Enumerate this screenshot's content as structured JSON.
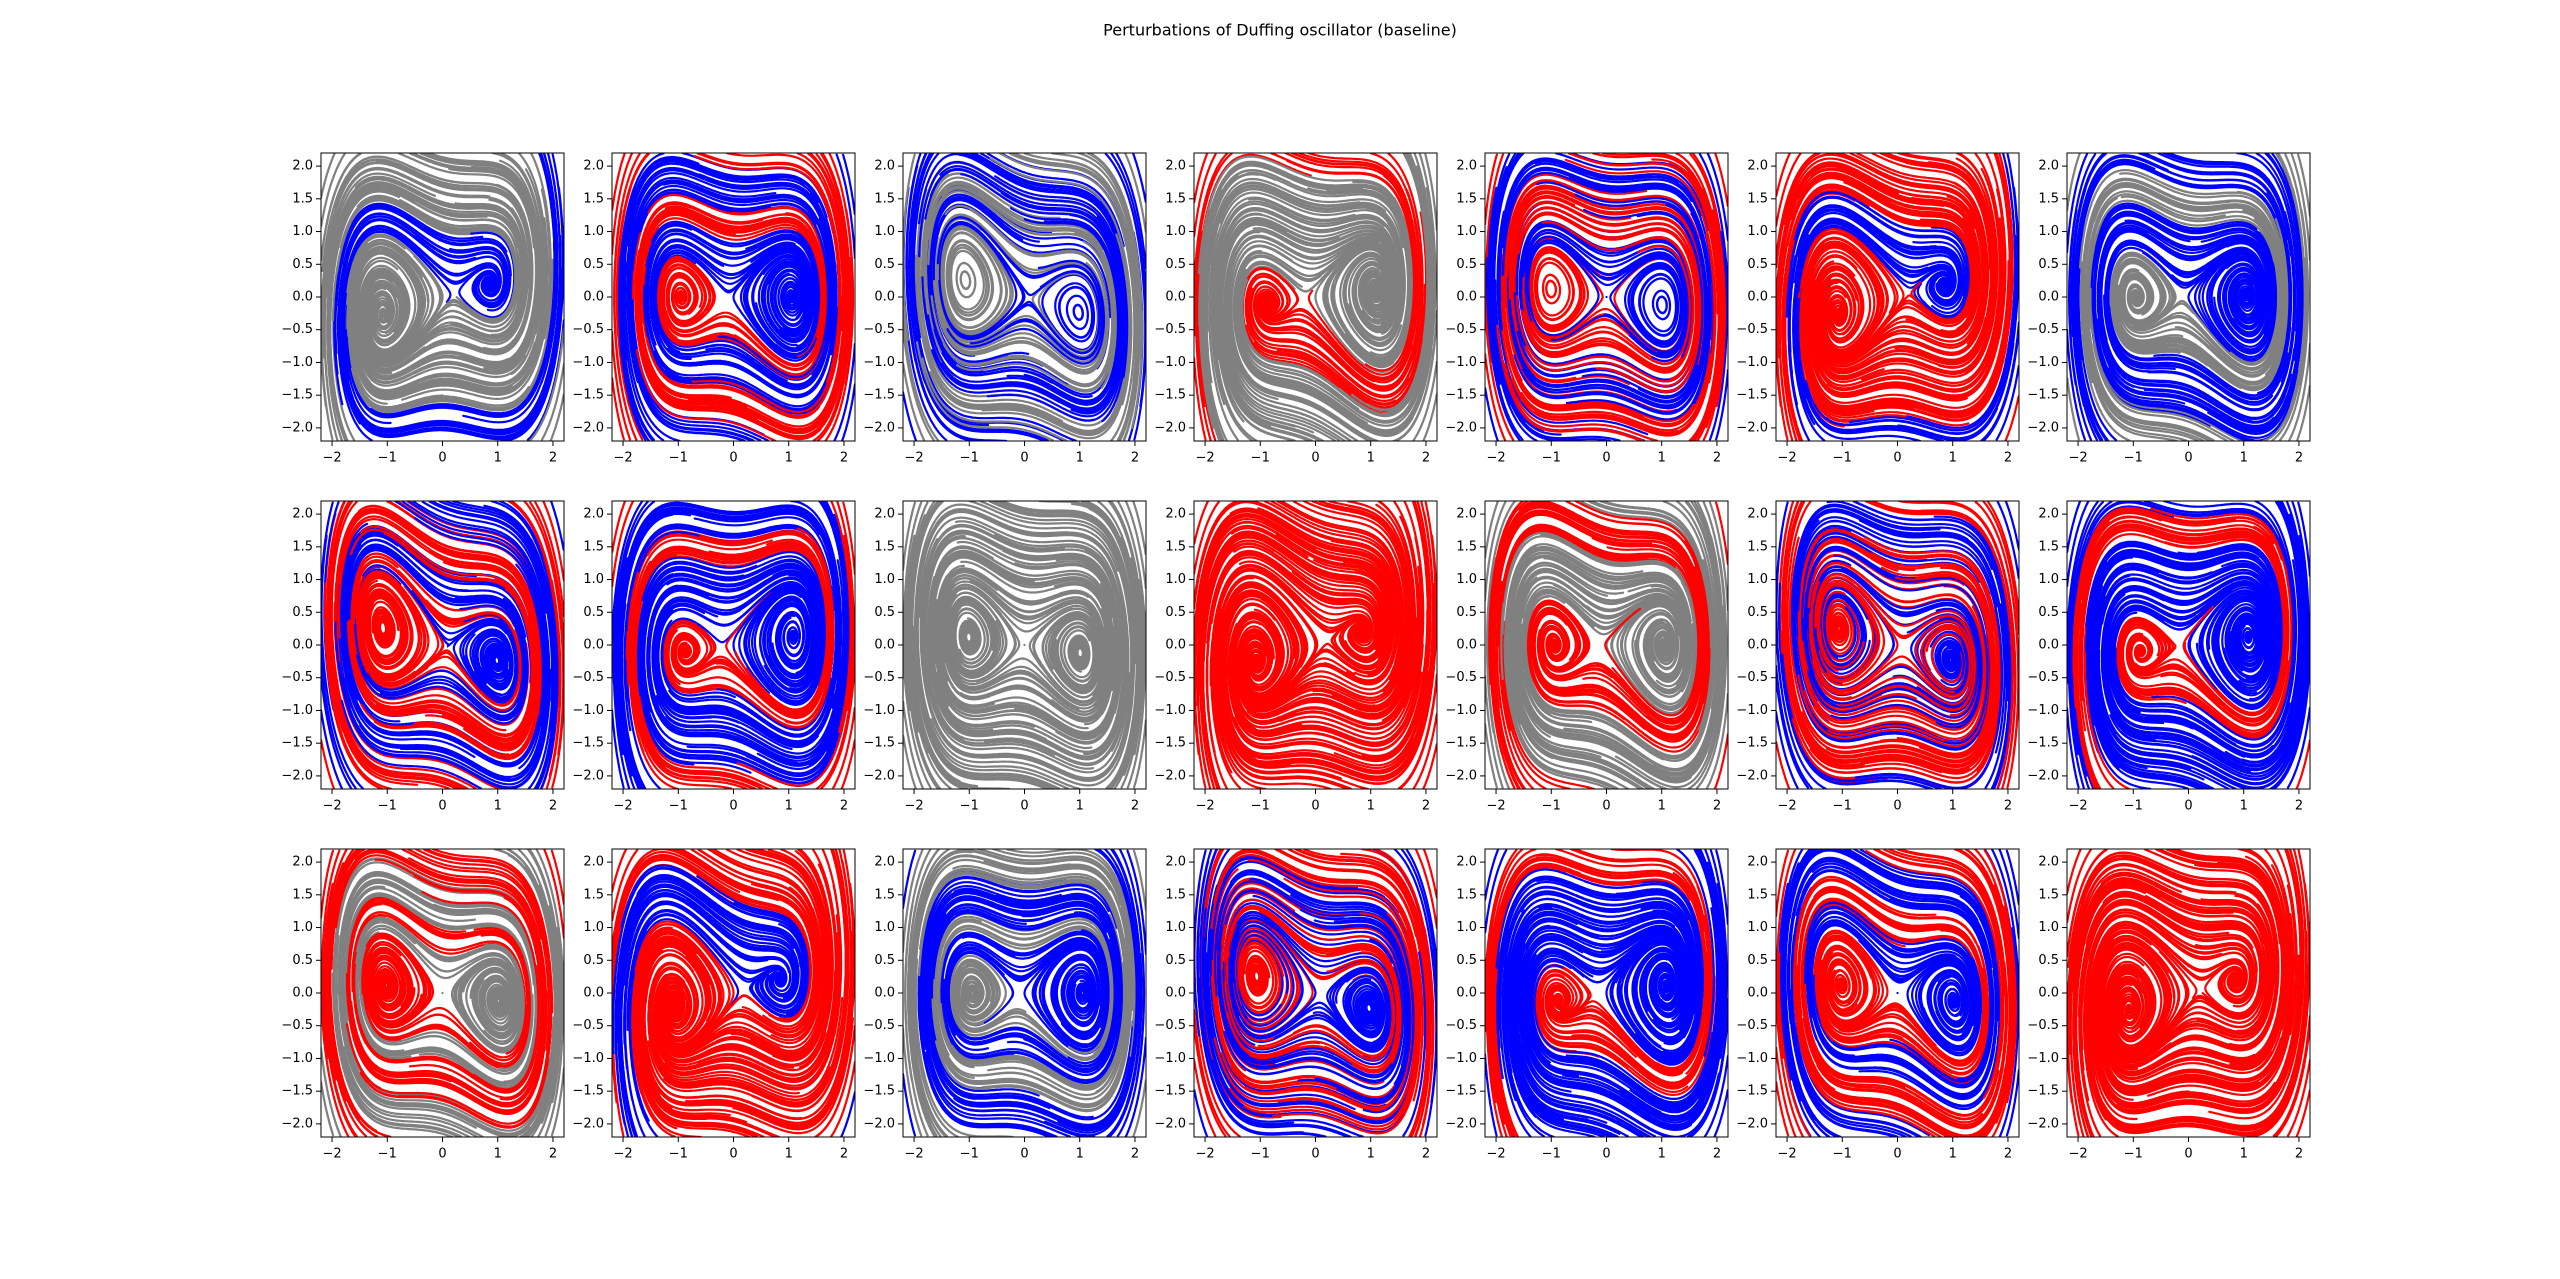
{
  "title": "Perturbations of Duffing oscillator (baseline)",
  "chart_data": [
    {
      "type": "streamplot",
      "colors": [
        "#808080",
        "#0000ff"
      ],
      "xlim": [
        -2.2,
        2.2
      ],
      "ylim": [
        -2.2,
        2.2
      ],
      "xticks": [
        {
          "value": -2,
          "label": "−2"
        },
        {
          "value": -1,
          "label": "−1"
        },
        0,
        1,
        2
      ],
      "yticks": [
        {
          "value": -2,
          "label": "−2.0"
        },
        {
          "value": -1.5,
          "label": "−1.5"
        },
        {
          "value": -1,
          "label": "−1.0"
        },
        {
          "value": -0.5,
          "label": "−0.5"
        },
        {
          "value": 0,
          "label": "0.0"
        },
        0.5,
        {
          "value": 1,
          "label": "1.0"
        },
        1.5,
        {
          "value": 2,
          "label": "2.0"
        }
      ]
    },
    {
      "type": "streamplot",
      "colors": [
        "#ff0000",
        "#0000ff"
      ],
      "xlim": [
        -2.2,
        2.2
      ],
      "ylim": [
        -2.2,
        2.2
      ],
      "xticks": [
        {
          "value": -2,
          "label": "−2"
        },
        {
          "value": -1,
          "label": "−1"
        },
        0,
        1,
        2
      ],
      "yticks": [
        {
          "value": -2,
          "label": "−2.0"
        },
        {
          "value": -1.5,
          "label": "−1.5"
        },
        {
          "value": -1,
          "label": "−1.0"
        },
        {
          "value": -0.5,
          "label": "−0.5"
        },
        {
          "value": 0,
          "label": "0.0"
        },
        0.5,
        {
          "value": 1,
          "label": "1.0"
        },
        1.5,
        {
          "value": 2,
          "label": "2.0"
        }
      ]
    },
    {
      "type": "streamplot",
      "colors": [
        "#808080",
        "#0000ff"
      ],
      "xlim": [
        -2.2,
        2.2
      ],
      "ylim": [
        -2.2,
        2.2
      ],
      "xticks": [
        {
          "value": -2,
          "label": "−2"
        },
        {
          "value": -1,
          "label": "−1"
        },
        0,
        1,
        2
      ],
      "yticks": [
        {
          "value": -2,
          "label": "−2.0"
        },
        {
          "value": -1.5,
          "label": "−1.5"
        },
        {
          "value": -1,
          "label": "−1.0"
        },
        {
          "value": -0.5,
          "label": "−0.5"
        },
        {
          "value": 0,
          "label": "0.0"
        },
        0.5,
        {
          "value": 1,
          "label": "1.0"
        },
        1.5,
        {
          "value": 2,
          "label": "2.0"
        }
      ]
    },
    {
      "type": "streamplot",
      "colors": [
        "#ff0000",
        "#808080"
      ],
      "xlim": [
        -2.2,
        2.2
      ],
      "ylim": [
        -2.2,
        2.2
      ],
      "xticks": [
        {
          "value": -2,
          "label": "−2"
        },
        {
          "value": -1,
          "label": "−1"
        },
        0,
        1,
        2
      ],
      "yticks": [
        {
          "value": -2,
          "label": "−2.0"
        },
        {
          "value": -1.5,
          "label": "−1.5"
        },
        {
          "value": -1,
          "label": "−1.0"
        },
        {
          "value": -0.5,
          "label": "−0.5"
        },
        {
          "value": 0,
          "label": "0.0"
        },
        0.5,
        {
          "value": 1,
          "label": "1.0"
        },
        1.5,
        {
          "value": 2,
          "label": "2.0"
        }
      ]
    },
    {
      "type": "streamplot",
      "colors": [
        "#ff0000",
        "#0000ff"
      ],
      "xlim": [
        -2.2,
        2.2
      ],
      "ylim": [
        -2.2,
        2.2
      ],
      "xticks": [
        {
          "value": -2,
          "label": "−2"
        },
        {
          "value": -1,
          "label": "−1"
        },
        0,
        1,
        2
      ],
      "yticks": [
        {
          "value": -2,
          "label": "−2.0"
        },
        {
          "value": -1.5,
          "label": "−1.5"
        },
        {
          "value": -1,
          "label": "−1.0"
        },
        {
          "value": -0.5,
          "label": "−0.5"
        },
        {
          "value": 0,
          "label": "0.0"
        },
        0.5,
        {
          "value": 1,
          "label": "1.0"
        },
        1.5,
        {
          "value": 2,
          "label": "2.0"
        }
      ]
    },
    {
      "type": "streamplot",
      "colors": [
        "#ff0000",
        "#0000ff"
      ],
      "xlim": [
        -2.2,
        2.2
      ],
      "ylim": [
        -2.2,
        2.2
      ],
      "xticks": [
        {
          "value": -2,
          "label": "−2"
        },
        {
          "value": -1,
          "label": "−1"
        },
        0,
        1,
        2
      ],
      "yticks": [
        {
          "value": -2,
          "label": "−2.0"
        },
        {
          "value": -1.5,
          "label": "−1.5"
        },
        {
          "value": -1,
          "label": "−1.0"
        },
        {
          "value": -0.5,
          "label": "−0.5"
        },
        {
          "value": 0,
          "label": "0.0"
        },
        0.5,
        {
          "value": 1,
          "label": "1.0"
        },
        1.5,
        {
          "value": 2,
          "label": "2.0"
        }
      ]
    },
    {
      "type": "streamplot",
      "colors": [
        "#808080",
        "#0000ff"
      ],
      "xlim": [
        -2.2,
        2.2
      ],
      "ylim": [
        -2.2,
        2.2
      ],
      "xticks": [
        {
          "value": -2,
          "label": "−2"
        },
        {
          "value": -1,
          "label": "−1"
        },
        0,
        1,
        2
      ],
      "yticks": [
        {
          "value": -2,
          "label": "−2.0"
        },
        {
          "value": -1.5,
          "label": "−1.5"
        },
        {
          "value": -1,
          "label": "−1.0"
        },
        {
          "value": -0.5,
          "label": "−0.5"
        },
        {
          "value": 0,
          "label": "0.0"
        },
        0.5,
        {
          "value": 1,
          "label": "1.0"
        },
        1.5,
        {
          "value": 2,
          "label": "2.0"
        }
      ]
    },
    {
      "type": "streamplot",
      "colors": [
        "#ff0000",
        "#0000ff"
      ],
      "xlim": [
        -2.2,
        2.2
      ],
      "ylim": [
        -2.2,
        2.2
      ],
      "xticks": [
        {
          "value": -2,
          "label": "−2"
        },
        {
          "value": -1,
          "label": "−1"
        },
        0,
        1,
        2
      ],
      "yticks": [
        {
          "value": -2,
          "label": "−2.0"
        },
        {
          "value": -1.5,
          "label": "−1.5"
        },
        {
          "value": -1,
          "label": "−1.0"
        },
        {
          "value": -0.5,
          "label": "−0.5"
        },
        {
          "value": 0,
          "label": "0.0"
        },
        0.5,
        {
          "value": 1,
          "label": "1.0"
        },
        1.5,
        {
          "value": 2,
          "label": "2.0"
        }
      ]
    },
    {
      "type": "streamplot",
      "colors": [
        "#ff0000",
        "#0000ff"
      ],
      "xlim": [
        -2.2,
        2.2
      ],
      "ylim": [
        -2.2,
        2.2
      ],
      "xticks": [
        {
          "value": -2,
          "label": "−2"
        },
        {
          "value": -1,
          "label": "−1"
        },
        0,
        1,
        2
      ],
      "yticks": [
        {
          "value": -2,
          "label": "−2.0"
        },
        {
          "value": -1.5,
          "label": "−1.5"
        },
        {
          "value": -1,
          "label": "−1.0"
        },
        {
          "value": -0.5,
          "label": "−0.5"
        },
        {
          "value": 0,
          "label": "0.0"
        },
        0.5,
        {
          "value": 1,
          "label": "1.0"
        },
        1.5,
        {
          "value": 2,
          "label": "2.0"
        }
      ]
    },
    {
      "type": "streamplot",
      "colors": [
        "#808080"
      ],
      "xlim": [
        -2.2,
        2.2
      ],
      "ylim": [
        -2.2,
        2.2
      ],
      "xticks": [
        {
          "value": -2,
          "label": "−2"
        },
        {
          "value": -1,
          "label": "−1"
        },
        0,
        1,
        2
      ],
      "yticks": [
        {
          "value": -2,
          "label": "−2.0"
        },
        {
          "value": -1.5,
          "label": "−1.5"
        },
        {
          "value": -1,
          "label": "−1.0"
        },
        {
          "value": -0.5,
          "label": "−0.5"
        },
        {
          "value": 0,
          "label": "0.0"
        },
        0.5,
        {
          "value": 1,
          "label": "1.0"
        },
        1.5,
        {
          "value": 2,
          "label": "2.0"
        }
      ]
    },
    {
      "type": "streamplot",
      "colors": [
        "#ff0000"
      ],
      "xlim": [
        -2.2,
        2.2
      ],
      "ylim": [
        -2.2,
        2.2
      ],
      "xticks": [
        {
          "value": -2,
          "label": "−2"
        },
        {
          "value": -1,
          "label": "−1"
        },
        0,
        1,
        2
      ],
      "yticks": [
        {
          "value": -2,
          "label": "−2.0"
        },
        {
          "value": -1.5,
          "label": "−1.5"
        },
        {
          "value": -1,
          "label": "−1.0"
        },
        {
          "value": -0.5,
          "label": "−0.5"
        },
        {
          "value": 0,
          "label": "0.0"
        },
        0.5,
        {
          "value": 1,
          "label": "1.0"
        },
        1.5,
        {
          "value": 2,
          "label": "2.0"
        }
      ]
    },
    {
      "type": "streamplot",
      "colors": [
        "#ff0000",
        "#808080"
      ],
      "xlim": [
        -2.2,
        2.2
      ],
      "ylim": [
        -2.2,
        2.2
      ],
      "xticks": [
        {
          "value": -2,
          "label": "−2"
        },
        {
          "value": -1,
          "label": "−1"
        },
        0,
        1,
        2
      ],
      "yticks": [
        {
          "value": -2,
          "label": "−2.0"
        },
        {
          "value": -1.5,
          "label": "−1.5"
        },
        {
          "value": -1,
          "label": "−1.0"
        },
        {
          "value": -0.5,
          "label": "−0.5"
        },
        {
          "value": 0,
          "label": "0.0"
        },
        0.5,
        {
          "value": 1,
          "label": "1.0"
        },
        1.5,
        {
          "value": 2,
          "label": "2.0"
        }
      ]
    },
    {
      "type": "streamplot",
      "colors": [
        "#ff0000",
        "#0000ff"
      ],
      "xlim": [
        -2.2,
        2.2
      ],
      "ylim": [
        -2.2,
        2.2
      ],
      "xticks": [
        {
          "value": -2,
          "label": "−2"
        },
        {
          "value": -1,
          "label": "−1"
        },
        0,
        1,
        2
      ],
      "yticks": [
        {
          "value": -2,
          "label": "−2.0"
        },
        {
          "value": -1.5,
          "label": "−1.5"
        },
        {
          "value": -1,
          "label": "−1.0"
        },
        {
          "value": -0.5,
          "label": "−0.5"
        },
        {
          "value": 0,
          "label": "0.0"
        },
        0.5,
        {
          "value": 1,
          "label": "1.0"
        },
        1.5,
        {
          "value": 2,
          "label": "2.0"
        }
      ]
    },
    {
      "type": "streamplot",
      "colors": [
        "#ff0000",
        "#0000ff"
      ],
      "xlim": [
        -2.2,
        2.2
      ],
      "ylim": [
        -2.2,
        2.2
      ],
      "xticks": [
        {
          "value": -2,
          "label": "−2"
        },
        {
          "value": -1,
          "label": "−1"
        },
        0,
        1,
        2
      ],
      "yticks": [
        {
          "value": -2,
          "label": "−2.0"
        },
        {
          "value": -1.5,
          "label": "−1.5"
        },
        {
          "value": -1,
          "label": "−1.0"
        },
        {
          "value": -0.5,
          "label": "−0.5"
        },
        {
          "value": 0,
          "label": "0.0"
        },
        0.5,
        {
          "value": 1,
          "label": "1.0"
        },
        1.5,
        {
          "value": 2,
          "label": "2.0"
        }
      ]
    },
    {
      "type": "streamplot",
      "colors": [
        "#ff0000",
        "#808080"
      ],
      "xlim": [
        -2.2,
        2.2
      ],
      "ylim": [
        -2.2,
        2.2
      ],
      "xticks": [
        {
          "value": -2,
          "label": "−2"
        },
        {
          "value": -1,
          "label": "−1"
        },
        0,
        1,
        2
      ],
      "yticks": [
        {
          "value": -2,
          "label": "−2.0"
        },
        {
          "value": -1.5,
          "label": "−1.5"
        },
        {
          "value": -1,
          "label": "−1.0"
        },
        {
          "value": -0.5,
          "label": "−0.5"
        },
        {
          "value": 0,
          "label": "0.0"
        },
        0.5,
        {
          "value": 1,
          "label": "1.0"
        },
        1.5,
        {
          "value": 2,
          "label": "2.0"
        }
      ]
    },
    {
      "type": "streamplot",
      "colors": [
        "#ff0000",
        "#0000ff"
      ],
      "xlim": [
        -2.2,
        2.2
      ],
      "ylim": [
        -2.2,
        2.2
      ],
      "xticks": [
        {
          "value": -2,
          "label": "−2"
        },
        {
          "value": -1,
          "label": "−1"
        },
        0,
        1,
        2
      ],
      "yticks": [
        {
          "value": -2,
          "label": "−2.0"
        },
        {
          "value": -1.5,
          "label": "−1.5"
        },
        {
          "value": -1,
          "label": "−1.0"
        },
        {
          "value": -0.5,
          "label": "−0.5"
        },
        {
          "value": 0,
          "label": "0.0"
        },
        0.5,
        {
          "value": 1,
          "label": "1.0"
        },
        1.5,
        {
          "value": 2,
          "label": "2.0"
        }
      ]
    },
    {
      "type": "streamplot",
      "colors": [
        "#808080",
        "#0000ff"
      ],
      "xlim": [
        -2.2,
        2.2
      ],
      "ylim": [
        -2.2,
        2.2
      ],
      "xticks": [
        {
          "value": -2,
          "label": "−2"
        },
        {
          "value": -1,
          "label": "−1"
        },
        0,
        1,
        2
      ],
      "yticks": [
        {
          "value": -2,
          "label": "−2.0"
        },
        {
          "value": -1.5,
          "label": "−1.5"
        },
        {
          "value": -1,
          "label": "−1.0"
        },
        {
          "value": -0.5,
          "label": "−0.5"
        },
        {
          "value": 0,
          "label": "0.0"
        },
        0.5,
        {
          "value": 1,
          "label": "1.0"
        },
        1.5,
        {
          "value": 2,
          "label": "2.0"
        }
      ]
    },
    {
      "type": "streamplot",
      "colors": [
        "#ff0000",
        "#0000ff"
      ],
      "xlim": [
        -2.2,
        2.2
      ],
      "ylim": [
        -2.2,
        2.2
      ],
      "xticks": [
        {
          "value": -2,
          "label": "−2"
        },
        {
          "value": -1,
          "label": "−1"
        },
        0,
        1,
        2
      ],
      "yticks": [
        {
          "value": -2,
          "label": "−2.0"
        },
        {
          "value": -1.5,
          "label": "−1.5"
        },
        {
          "value": -1,
          "label": "−1.0"
        },
        {
          "value": -0.5,
          "label": "−0.5"
        },
        {
          "value": 0,
          "label": "0.0"
        },
        0.5,
        {
          "value": 1,
          "label": "1.0"
        },
        1.5,
        {
          "value": 2,
          "label": "2.0"
        }
      ]
    },
    {
      "type": "streamplot",
      "colors": [
        "#ff0000",
        "#0000ff"
      ],
      "xlim": [
        -2.2,
        2.2
      ],
      "ylim": [
        -2.2,
        2.2
      ],
      "xticks": [
        {
          "value": -2,
          "label": "−2"
        },
        {
          "value": -1,
          "label": "−1"
        },
        0,
        1,
        2
      ],
      "yticks": [
        {
          "value": -2,
          "label": "−2.0"
        },
        {
          "value": -1.5,
          "label": "−1.5"
        },
        {
          "value": -1,
          "label": "−1.0"
        },
        {
          "value": -0.5,
          "label": "−0.5"
        },
        {
          "value": 0,
          "label": "0.0"
        },
        0.5,
        {
          "value": 1,
          "label": "1.0"
        },
        1.5,
        {
          "value": 2,
          "label": "2.0"
        }
      ]
    },
    {
      "type": "streamplot",
      "colors": [
        "#ff0000",
        "#0000ff"
      ],
      "xlim": [
        -2.2,
        2.2
      ],
      "ylim": [
        -2.2,
        2.2
      ],
      "xticks": [
        {
          "value": -2,
          "label": "−2"
        },
        {
          "value": -1,
          "label": "−1"
        },
        0,
        1,
        2
      ],
      "yticks": [
        {
          "value": -2,
          "label": "−2.0"
        },
        {
          "value": -1.5,
          "label": "−1.5"
        },
        {
          "value": -1,
          "label": "−1.0"
        },
        {
          "value": -0.5,
          "label": "−0.5"
        },
        {
          "value": 0,
          "label": "0.0"
        },
        0.5,
        {
          "value": 1,
          "label": "1.0"
        },
        1.5,
        {
          "value": 2,
          "label": "2.0"
        }
      ]
    },
    {
      "type": "streamplot",
      "colors": [
        "#ff0000"
      ],
      "xlim": [
        -2.2,
        2.2
      ],
      "ylim": [
        -2.2,
        2.2
      ],
      "xticks": [
        {
          "value": -2,
          "label": "−2"
        },
        {
          "value": -1,
          "label": "−1"
        },
        0,
        1,
        2
      ],
      "yticks": [
        {
          "value": -2,
          "label": "−2.0"
        },
        {
          "value": -1.5,
          "label": "−1.5"
        },
        {
          "value": -1,
          "label": "−1.0"
        },
        {
          "value": -0.5,
          "label": "−0.5"
        },
        {
          "value": 0,
          "label": "0.0"
        },
        0.5,
        {
          "value": 1,
          "label": "1.0"
        },
        1.5,
        {
          "value": 2,
          "label": "2.0"
        }
      ]
    }
  ]
}
